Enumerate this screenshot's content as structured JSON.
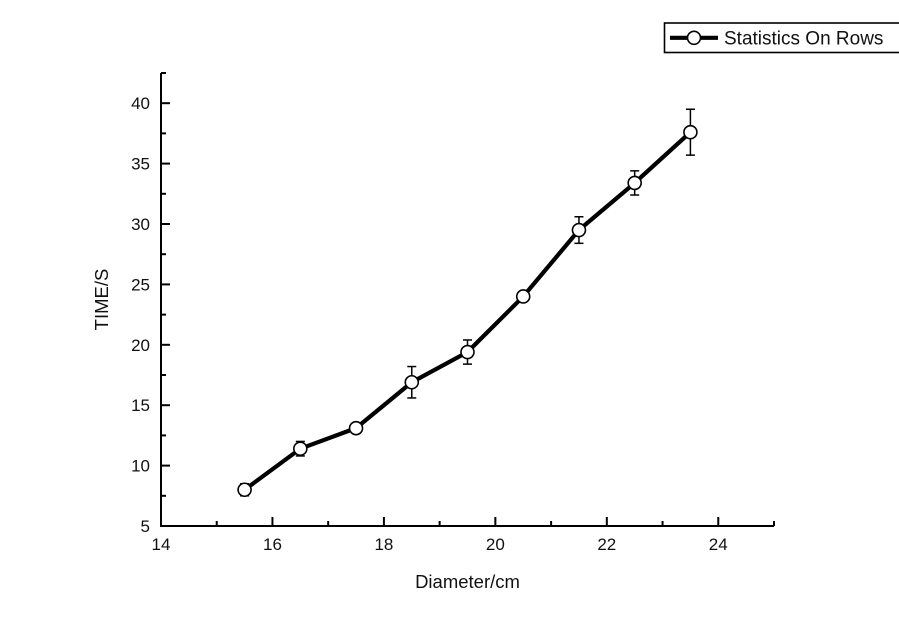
{
  "chart_data": {
    "type": "line",
    "title": "",
    "xlabel": "Diameter/cm",
    "ylabel": "TIME/S",
    "xlim": [
      14,
      25
    ],
    "ylim": [
      5,
      42.5
    ],
    "x_major_ticks": [
      14,
      16,
      18,
      20,
      22,
      24
    ],
    "x_minor_ticks": [
      15,
      17,
      19,
      21,
      23,
      25
    ],
    "y_major_ticks": [
      5,
      10,
      15,
      20,
      25,
      30,
      35,
      40
    ],
    "y_minor_ticks": [
      7.5,
      12.5,
      17.5,
      22.5,
      27.5,
      32.5,
      37.5,
      42.5
    ],
    "grid": false,
    "legend": {
      "position": "top-right",
      "clipped_at_right_edge": true,
      "entries": [
        "Statistics On Rows"
      ]
    },
    "series": [
      {
        "name": "Statistics On Rows",
        "marker": "open-circle",
        "color": "#000000",
        "x": [
          15.5,
          16.5,
          17.5,
          18.5,
          19.5,
          20.5,
          21.5,
          22.5,
          23.5
        ],
        "y": [
          8.0,
          11.4,
          13.1,
          16.9,
          19.4,
          24.0,
          29.5,
          33.4,
          37.6
        ],
        "y_err": [
          0.5,
          0.6,
          0.4,
          1.3,
          1.0,
          0.4,
          1.1,
          1.0,
          1.9
        ]
      }
    ],
    "colors": {
      "axis": "#000000",
      "text": "#111111",
      "background": "#ffffff"
    }
  }
}
